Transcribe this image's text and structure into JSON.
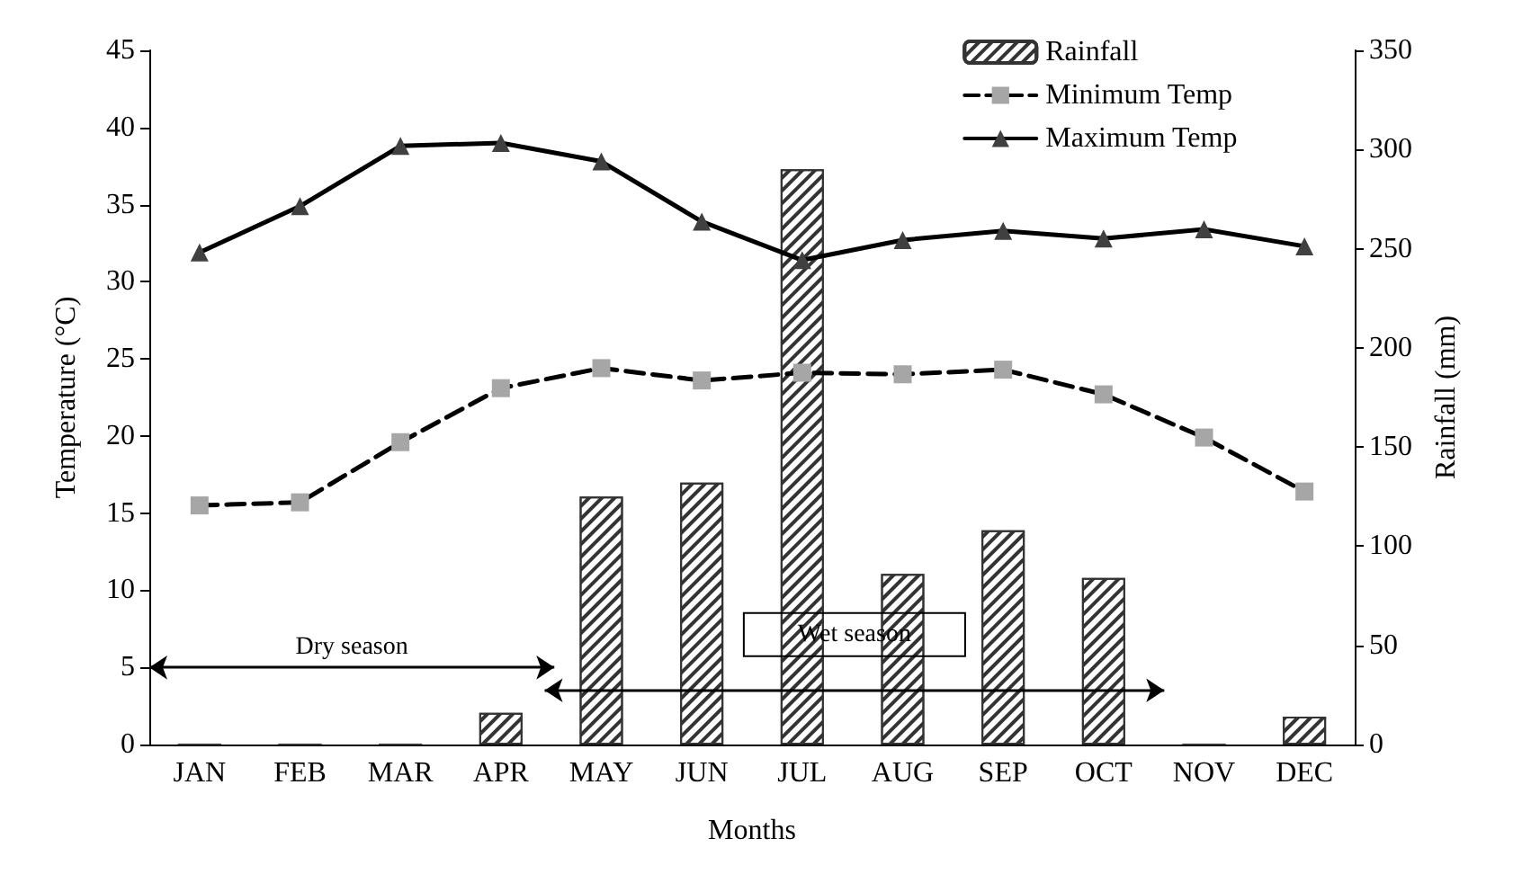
{
  "chart_data": {
    "type": "line",
    "xlabel": "Months",
    "ylabel": "Temperature (°C)",
    "y2label": "Rainfall (mm)",
    "categories": [
      "JAN",
      "FEB",
      "MAR",
      "APR",
      "MAY",
      "JUN",
      "JUL",
      "AUG",
      "SEP",
      "OCT",
      "NOV",
      "DEC"
    ],
    "series": [
      {
        "name": "Rainfall",
        "type": "bar",
        "axis": "y2",
        "color": "#333333",
        "values": [
          0,
          0,
          0,
          16,
          125,
          132,
          290,
          86,
          108,
          84,
          0,
          14
        ]
      },
      {
        "name": "Minimum Temp",
        "color": "#a6a6a6",
        "marker": "square",
        "line_style": "dashed",
        "values": [
          15.5,
          15.7,
          19.6,
          23.1,
          24.4,
          23.6,
          24.1,
          24.0,
          24.3,
          22.7,
          19.9,
          16.4
        ]
      },
      {
        "name": "Maximum Temp",
        "color": "#404040",
        "marker": "triangle",
        "line_style": "solid",
        "values": [
          31.9,
          34.9,
          38.8,
          39.0,
          37.8,
          33.9,
          31.4,
          32.7,
          33.3,
          32.8,
          33.4,
          32.3
        ]
      }
    ],
    "ylim": [
      0,
      45
    ],
    "yticks": [
      0,
      5,
      10,
      15,
      20,
      25,
      30,
      35,
      40,
      45
    ],
    "y2lim": [
      0,
      350
    ],
    "y2ticks": [
      0,
      50,
      100,
      150,
      200,
      250,
      300,
      350
    ],
    "annotations": [
      "Dry season",
      "Wet season"
    ],
    "legend": "top right",
    "grid": false
  }
}
